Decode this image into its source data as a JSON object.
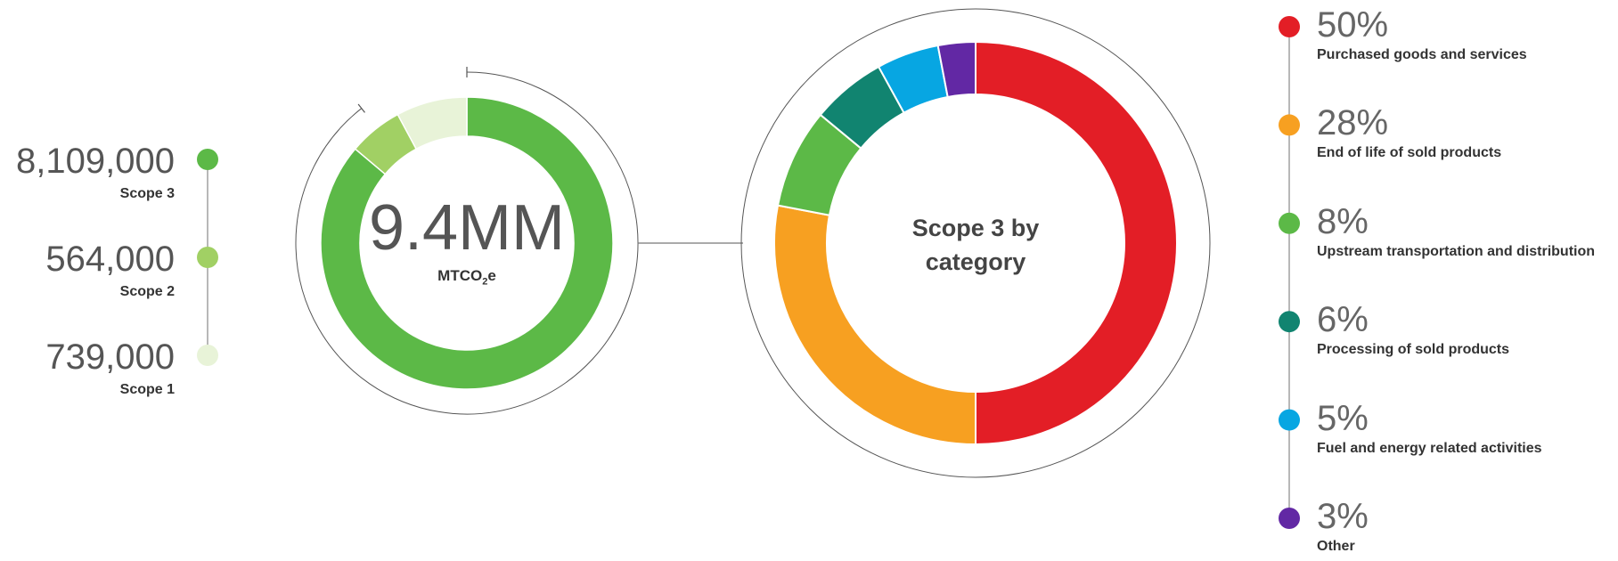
{
  "scopes_chart": {
    "type": "pie",
    "total_value": "9.4MM",
    "total_unit": "MTCO",
    "total_unit_sub": "2",
    "total_unit_suffix": "e",
    "segments": [
      {
        "name": "Scope 3",
        "value_label": "8,109,000",
        "value": 8109000,
        "color": "#5cb947"
      },
      {
        "name": "Scope 2",
        "value_label": "564,000",
        "value": 564000,
        "color": "#a1d064"
      },
      {
        "name": "Scope 1",
        "value_label": "739,000",
        "value": 739000,
        "color": "#e8f3d8"
      }
    ]
  },
  "category_chart": {
    "type": "pie",
    "center_title_line1": "Scope 3 by",
    "center_title_line2": "category",
    "slices": [
      {
        "percent_label": "50%",
        "value": 50,
        "name": "Purchased goods and services",
        "color": "#e31e26"
      },
      {
        "percent_label": "28%",
        "value": 28,
        "name": "End of life of sold products",
        "color": "#f7a021"
      },
      {
        "percent_label": "8%",
        "value": 8,
        "name": "Upstream transportation and distribution",
        "color": "#5cb947"
      },
      {
        "percent_label": "6%",
        "value": 6,
        "name": "Processing of sold products",
        "color": "#118470"
      },
      {
        "percent_label": "5%",
        "value": 5,
        "name": "Fuel and energy related activities",
        "color": "#07a6e2"
      },
      {
        "percent_label": "3%",
        "value": 3,
        "name": "Other",
        "color": "#6228a4"
      }
    ]
  },
  "chart_data": [
    {
      "type": "pie",
      "categories": [
        "Scope 3",
        "Scope 2",
        "Scope 1"
      ],
      "values": [
        8109000,
        564000,
        739000
      ],
      "total": "9.4MM MTCO2e"
    },
    {
      "type": "pie",
      "title": "Scope 3 by category",
      "categories": [
        "Purchased goods and services",
        "End of life of sold products",
        "Upstream transportation and distribution",
        "Processing of sold products",
        "Fuel and energy related activities",
        "Other"
      ],
      "values": [
        50,
        28,
        8,
        6,
        5,
        3
      ]
    }
  ]
}
